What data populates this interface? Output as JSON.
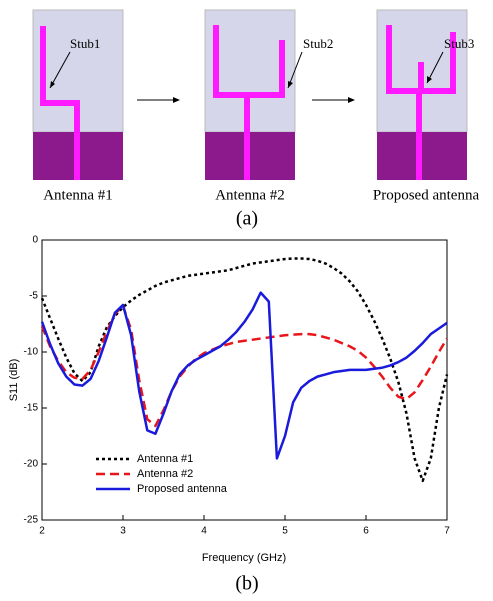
{
  "figure": {
    "stubs": [
      "Stub1",
      "Stub2",
      "Stub3"
    ],
    "antennas": [
      "Antenna #1",
      "Antenna #2",
      "Proposed antenna"
    ],
    "panel_a": "(a)",
    "panel_b": "(b)"
  },
  "chart_data": {
    "type": "line",
    "xlabel": "Frequency (GHz)",
    "ylabel": "S11 (dB)",
    "xlim": [
      2,
      7
    ],
    "ylim": [
      -25,
      0
    ],
    "xticks": [
      2,
      3,
      4,
      5,
      6,
      7
    ],
    "yticks": [
      -25,
      -20,
      -15,
      -10,
      -5,
      0
    ],
    "x": [
      2.0,
      2.1,
      2.2,
      2.3,
      2.4,
      2.5,
      2.6,
      2.7,
      2.8,
      2.9,
      3.0,
      3.1,
      3.2,
      3.3,
      3.4,
      3.5,
      3.6,
      3.7,
      3.8,
      3.9,
      4.0,
      4.1,
      4.2,
      4.3,
      4.4,
      4.5,
      4.6,
      4.7,
      4.8,
      4.9,
      5.0,
      5.1,
      5.2,
      5.3,
      5.4,
      5.5,
      5.6,
      5.7,
      5.8,
      5.9,
      6.0,
      6.1,
      6.2,
      6.3,
      6.4,
      6.5,
      6.6,
      6.7,
      6.8,
      6.9,
      7.0
    ],
    "series": [
      {
        "name": "Antenna #1",
        "color": "#000000",
        "dash": "3,3",
        "values": [
          -5.2,
          -7.0,
          -8.8,
          -10.5,
          -11.9,
          -12.6,
          -11.8,
          -9.5,
          -7.8,
          -6.8,
          -6.0,
          -5.4,
          -4.9,
          -4.5,
          -4.1,
          -3.8,
          -3.6,
          -3.4,
          -3.2,
          -3.1,
          -3.0,
          -2.9,
          -2.8,
          -2.7,
          -2.5,
          -2.3,
          -2.1,
          -2.0,
          -1.9,
          -1.8,
          -1.7,
          -1.65,
          -1.65,
          -1.7,
          -1.85,
          -2.1,
          -2.5,
          -3.0,
          -3.7,
          -4.6,
          -5.8,
          -7.2,
          -8.8,
          -10.6,
          -12.7,
          -15.5,
          -19.5,
          -21.5,
          -19.5,
          -15,
          -12
        ]
      },
      {
        "name": "Antenna #2",
        "color": "#e8161b",
        "dash": "9,5",
        "values": [
          -7.7,
          -9.5,
          -10.8,
          -11.8,
          -12.3,
          -12.4,
          -11.6,
          -10.0,
          -8.2,
          -6.6,
          -5.9,
          -8.0,
          -12.5,
          -16.0,
          -16.6,
          -15.2,
          -13.5,
          -12.2,
          -11.3,
          -10.6,
          -10.1,
          -9.8,
          -9.5,
          -9.3,
          -9.1,
          -9.0,
          -8.9,
          -8.8,
          -8.7,
          -8.6,
          -8.5,
          -8.45,
          -8.4,
          -8.4,
          -8.5,
          -8.7,
          -8.9,
          -9.2,
          -9.5,
          -9.9,
          -10.5,
          -11.3,
          -12.2,
          -13.2,
          -14.0,
          -14.2,
          -13.6,
          -12.5,
          -11.3,
          -10.0,
          -8.8
        ]
      },
      {
        "name": "Proposed antenna",
        "color": "#1a1adc",
        "dash": "none",
        "values": [
          -7.3,
          -9.3,
          -11.0,
          -12.2,
          -12.9,
          -13.0,
          -12.4,
          -10.8,
          -8.7,
          -6.5,
          -5.8,
          -8.5,
          -13.5,
          -17.0,
          -17.3,
          -15.5,
          -13.5,
          -12.0,
          -11.2,
          -10.7,
          -10.3,
          -9.9,
          -9.5,
          -8.9,
          -8.2,
          -7.3,
          -6.2,
          -4.7,
          -5.5,
          -19.5,
          -17.5,
          -14.5,
          -13.2,
          -12.6,
          -12.2,
          -12.0,
          -11.8,
          -11.7,
          -11.6,
          -11.6,
          -11.6,
          -11.5,
          -11.4,
          -11.2,
          -10.9,
          -10.5,
          -9.9,
          -9.2,
          -8.4,
          -7.9,
          -7.4
        ]
      }
    ]
  }
}
